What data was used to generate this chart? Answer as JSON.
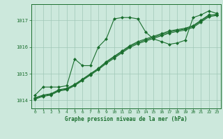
{
  "title": "Graphe pression niveau de la mer (hPa)",
  "background_color": "#cce8dc",
  "grid_color": "#a0c8b8",
  "line_color": "#1a6e2e",
  "xlim": [
    -0.5,
    23.5
  ],
  "ylim": [
    1013.7,
    1017.6
  ],
  "yticks": [
    1014,
    1015,
    1016,
    1017
  ],
  "xticks": [
    0,
    1,
    2,
    3,
    4,
    5,
    6,
    7,
    8,
    9,
    10,
    11,
    12,
    13,
    14,
    15,
    16,
    17,
    18,
    19,
    20,
    21,
    22,
    23
  ],
  "series1": [
    1014.2,
    1014.5,
    1014.5,
    1014.5,
    1014.55,
    1015.55,
    1015.3,
    1015.3,
    1016.0,
    1016.3,
    1017.05,
    1017.1,
    1017.1,
    1017.05,
    1016.55,
    1016.3,
    1016.2,
    1016.1,
    1016.15,
    1016.25,
    1017.1,
    1017.2,
    1017.35,
    1017.25
  ],
  "series2": [
    1014.1,
    1014.2,
    1014.25,
    1014.4,
    1014.45,
    1014.6,
    1014.8,
    1015.0,
    1015.2,
    1015.45,
    1015.65,
    1015.85,
    1016.05,
    1016.2,
    1016.3,
    1016.4,
    1016.5,
    1016.6,
    1016.65,
    1016.7,
    1016.8,
    1017.0,
    1017.2,
    1017.2
  ],
  "series3": [
    1014.05,
    1014.15,
    1014.2,
    1014.35,
    1014.4,
    1014.55,
    1014.75,
    1014.95,
    1015.15,
    1015.38,
    1015.58,
    1015.78,
    1015.98,
    1016.12,
    1016.22,
    1016.32,
    1016.42,
    1016.52,
    1016.58,
    1016.63,
    1016.73,
    1016.93,
    1017.13,
    1017.18
  ],
  "series4": [
    1014.08,
    1014.18,
    1014.23,
    1014.38,
    1014.43,
    1014.58,
    1014.78,
    1014.98,
    1015.18,
    1015.42,
    1015.62,
    1015.82,
    1016.02,
    1016.16,
    1016.26,
    1016.36,
    1016.46,
    1016.56,
    1016.62,
    1016.67,
    1016.77,
    1016.97,
    1017.17,
    1017.22
  ]
}
